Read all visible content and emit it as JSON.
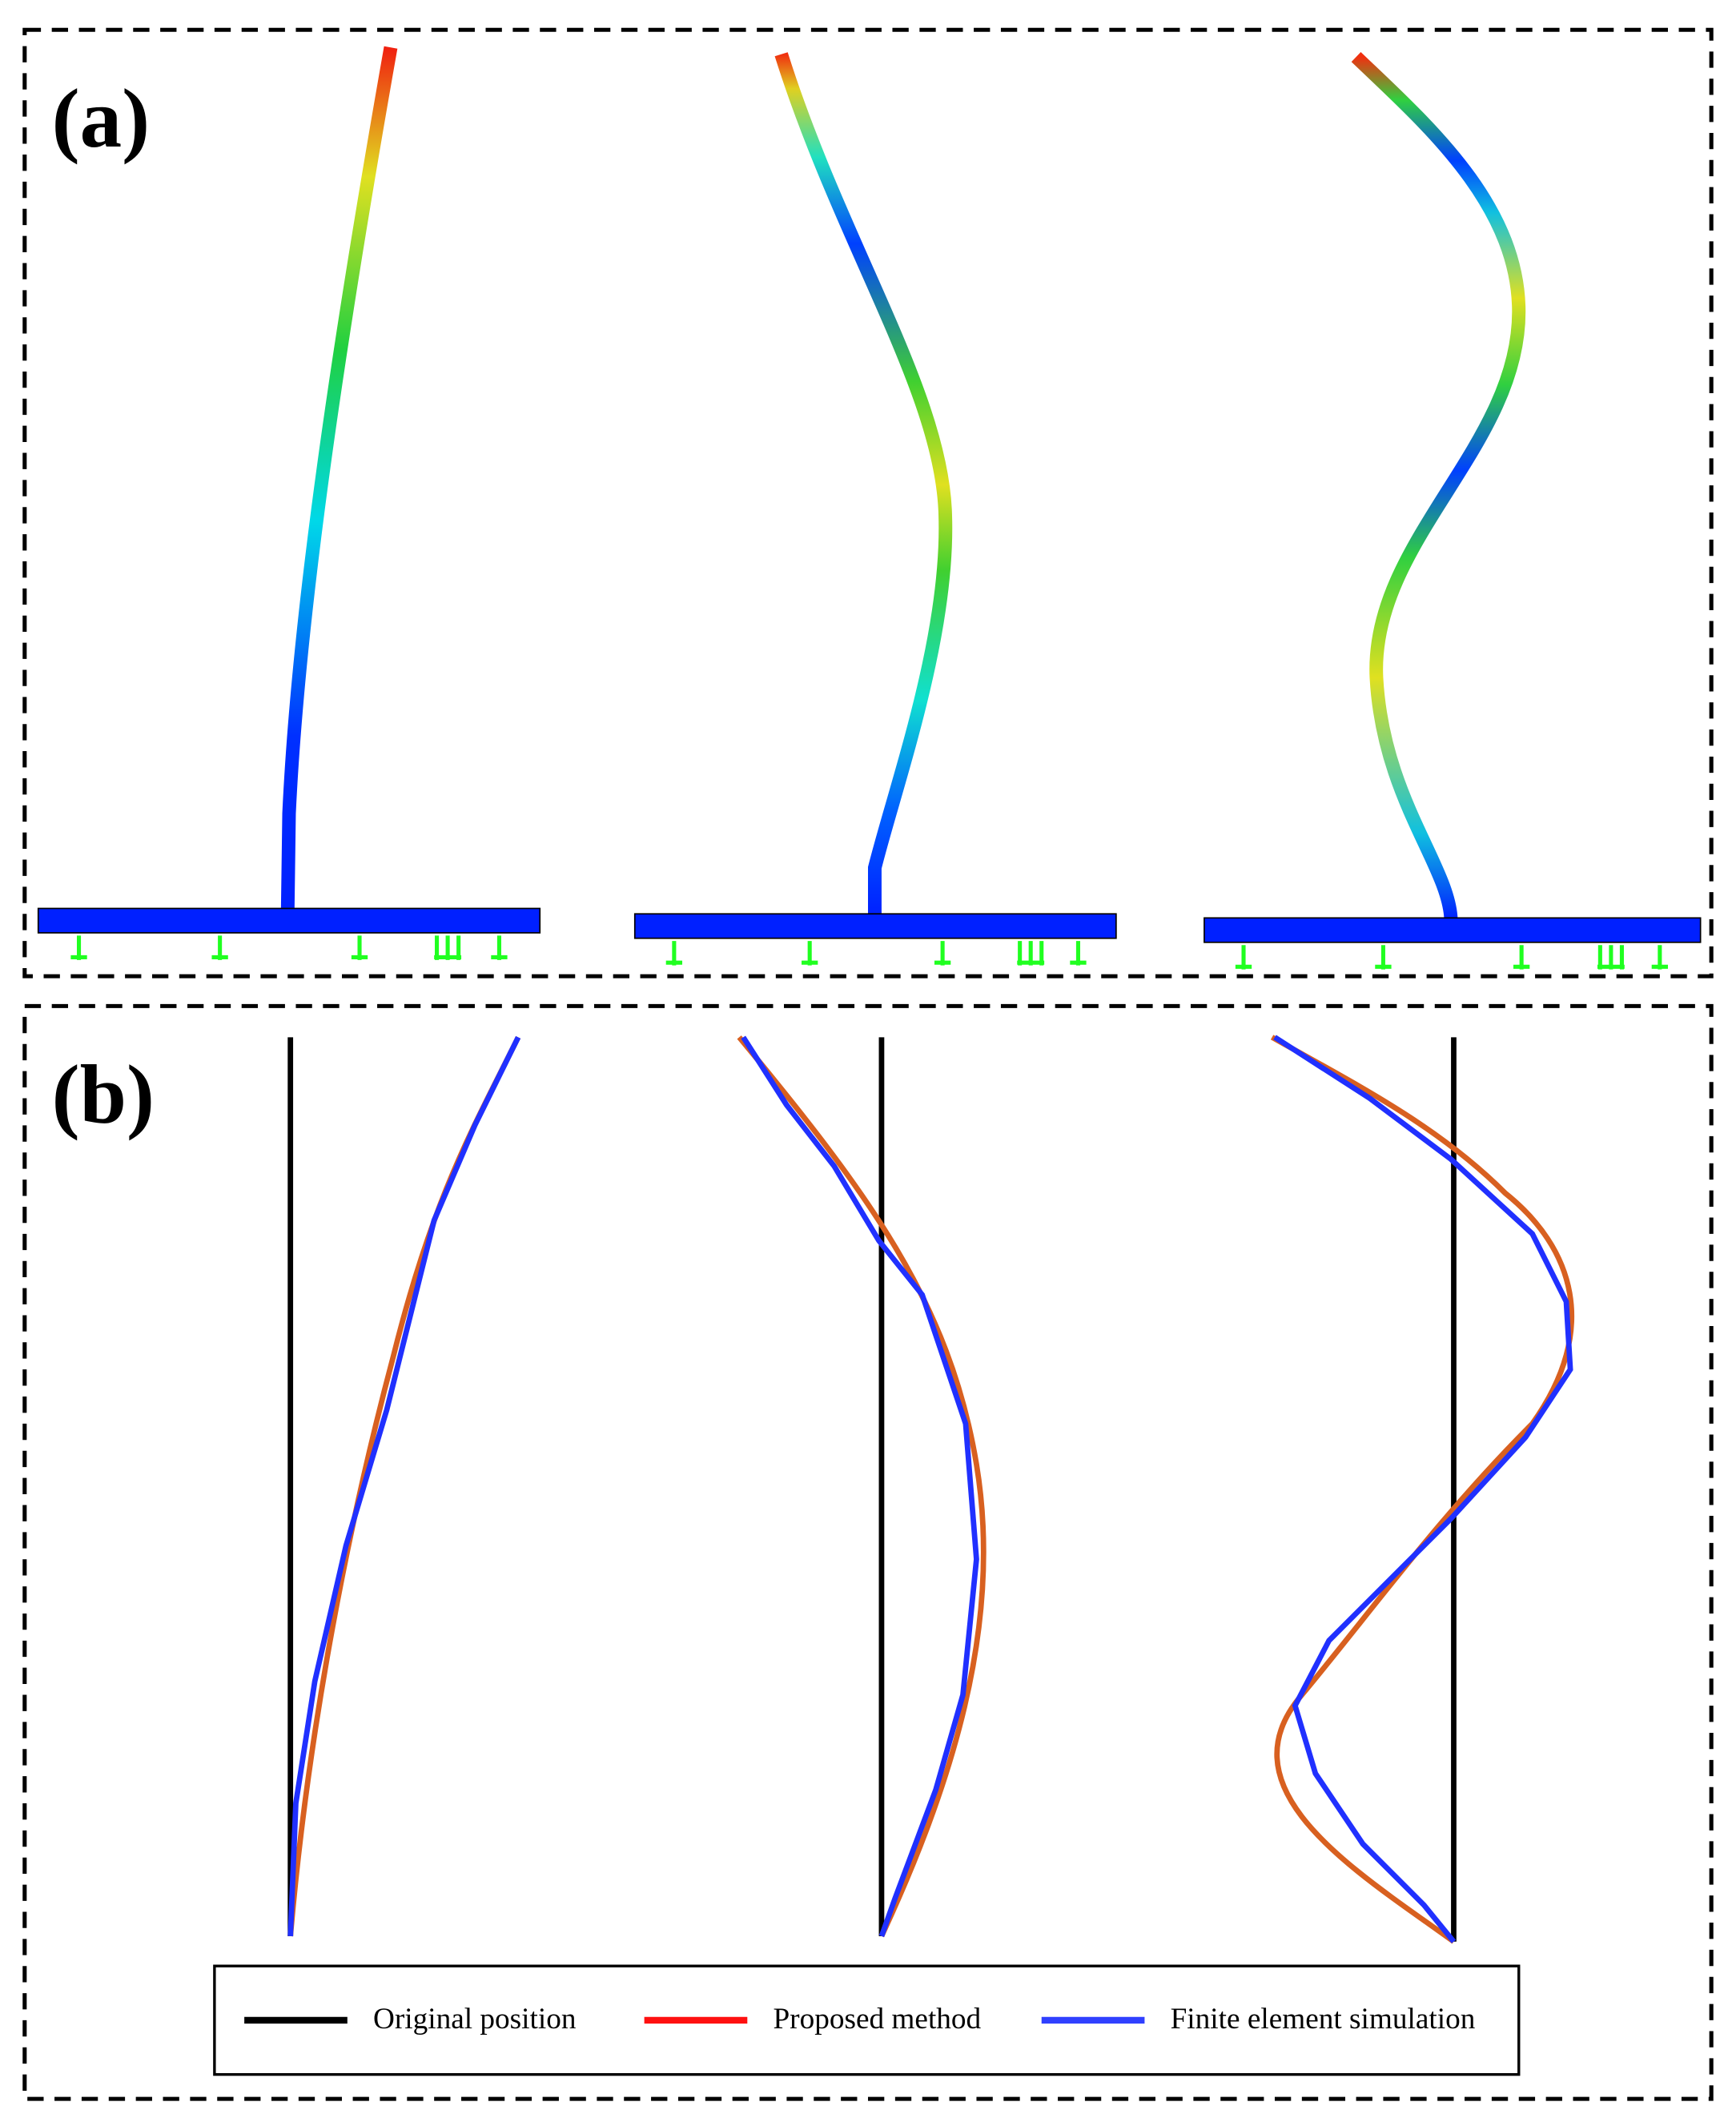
{
  "panels": [
    {
      "label": "(a)"
    },
    {
      "label": "(b)"
    }
  ],
  "legend": {
    "items": [
      "Original position",
      "Proposed method",
      "Finite element simulation"
    ]
  }
}
